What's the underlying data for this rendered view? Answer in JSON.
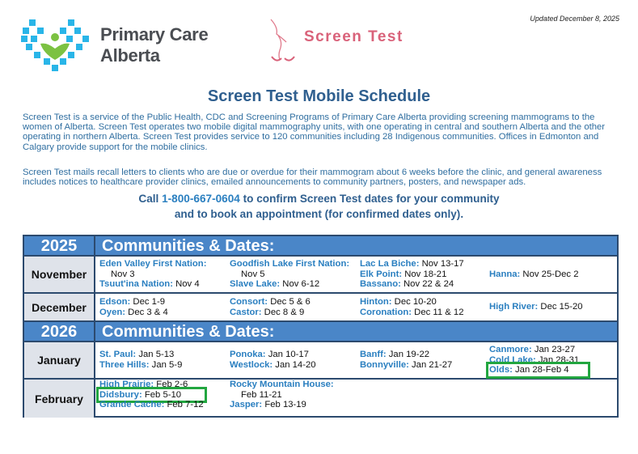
{
  "updated": "Updated December 8, 2025",
  "logos": {
    "pca": [
      "Primary Care",
      "Alberta"
    ],
    "screen_test": "Screen Test"
  },
  "title": "Screen Test Mobile Schedule",
  "paragraphs": [
    "Screen Test is a service of the Public Health, CDC and Screening Programs of Primary Care Alberta providing screening mammograms to the women of Alberta. Screen Test operates two mobile digital mammography units, with one operating in central and southern Alberta and the other operating in northern Alberta. Screen Test provides service to 120 communities including 28 Indigenous communities. Offices in Edmonton and Calgary provide support for the mobile clinics.",
    "Screen Test mails recall letters to clients who are due or overdue for their mammogram about 6 weeks before the clinic, and general awareness includes notices to healthcare provider clinics, emailed announcements to community partners, posters, and newspaper ads."
  ],
  "call": {
    "prefix": "Call ",
    "phone": "1-800-667-0604",
    "suffix": " to confirm Screen Test dates for your community",
    "line2": "and to book an appointment (for confirmed dates only)."
  },
  "colors": {
    "header_blue": "#4a86c8",
    "community_blue": "#2a7fc0",
    "highlight_green": "#22a640"
  },
  "years": [
    {
      "year": "2025",
      "heading": "Communities & Dates:",
      "months": [
        {
          "month": "November",
          "columns": [
            [
              {
                "name": "Eden Valley First Nation:",
                "dates": "Nov 3",
                "wrap": true
              },
              {
                "name": "Tsuut'ina Nation:",
                "dates": "Nov 4"
              }
            ],
            [
              {
                "name": "Goodfish Lake First Nation:",
                "dates": "Nov 5",
                "wrap": true
              },
              {
                "name": "Slave Lake:",
                "dates": "Nov 6-12"
              }
            ],
            [
              {
                "name": "Lac La Biche:",
                "dates": "Nov 13-17"
              },
              {
                "name": "Elk Point:",
                "dates": "Nov 18-21"
              },
              {
                "name": "Bassano:",
                "dates": "Nov 22 & 24"
              }
            ],
            [
              {
                "name": "Hanna:",
                "dates": "Nov 25-Dec 2"
              }
            ]
          ]
        },
        {
          "month": "December",
          "columns": [
            [
              {
                "name": "Edson:",
                "dates": "Dec 1-9"
              },
              {
                "name": "Oyen:",
                "dates": "Dec 3 & 4"
              }
            ],
            [
              {
                "name": "Consort:",
                "dates": "Dec 5 & 6"
              },
              {
                "name": "Castor:",
                "dates": "Dec 8 & 9"
              }
            ],
            [
              {
                "name": "Hinton:",
                "dates": "Dec 10-20"
              },
              {
                "name": "Coronation:",
                "dates": "Dec 11 & 12"
              }
            ],
            [
              {
                "name": "High River:",
                "dates": "Dec 15-20"
              }
            ]
          ]
        }
      ]
    },
    {
      "year": "2026",
      "heading": "Communities & Dates:",
      "months": [
        {
          "month": "January",
          "columns": [
            [
              {
                "name": "St. Paul:",
                "dates": "Jan 5-13"
              },
              {
                "name": "Three Hills:",
                "dates": "Jan 5-9"
              }
            ],
            [
              {
                "name": "Ponoka:",
                "dates": "Jan 10-17"
              },
              {
                "name": "Westlock:",
                "dates": "Jan 14-20"
              }
            ],
            [
              {
                "name": "Banff:",
                "dates": "Jan 19-22"
              },
              {
                "name": "Bonnyville:",
                "dates": "Jan 21-27"
              }
            ],
            [
              {
                "name": "Canmore:",
                "dates": "Jan 23-27"
              },
              {
                "name": "Cold Lake:",
                "dates": "Jan 28-31"
              },
              {
                "name": "Olds:",
                "dates": "Jan 28-Feb 4",
                "highlighted": true
              }
            ]
          ]
        },
        {
          "month": "February",
          "columns": [
            [
              {
                "name": "High Prairie:",
                "dates": "Feb 2-6"
              },
              {
                "name": "Didsbury:",
                "dates": "Feb 5-10",
                "highlighted": true
              },
              {
                "name": "Grande Cache:",
                "dates": "Feb 7-12"
              }
            ],
            [
              {
                "name": "Rocky Mountain House:",
                "dates": "Feb 11-21",
                "wrap": true
              },
              {
                "name": "Jasper:",
                "dates": "Feb 13-19"
              }
            ],
            [],
            []
          ]
        }
      ]
    }
  ]
}
